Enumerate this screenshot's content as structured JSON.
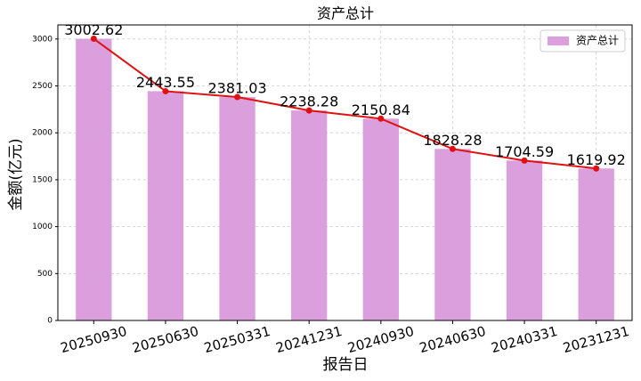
{
  "chart_data": {
    "type": "bar",
    "title": "资产总计",
    "x_label": "报告日",
    "y_label": "金额(亿元)",
    "categories": [
      "20250930",
      "20250630",
      "20250331",
      "20241231",
      "20240930",
      "20240630",
      "20240331",
      "20231231"
    ],
    "series": [
      {
        "name": "资产总计",
        "color": "#da9fdc",
        "values": [
          3002.62,
          2443.55,
          2381.03,
          2238.28,
          2150.84,
          1828.28,
          1704.59,
          1619.92
        ]
      }
    ],
    "line_overlay_color": "#e01010",
    "ylim": [
      0,
      3150
    ],
    "yticks": [
      0,
      500,
      1000,
      1500,
      2000,
      2500,
      3000
    ],
    "grid": true,
    "legend": "upper right"
  }
}
